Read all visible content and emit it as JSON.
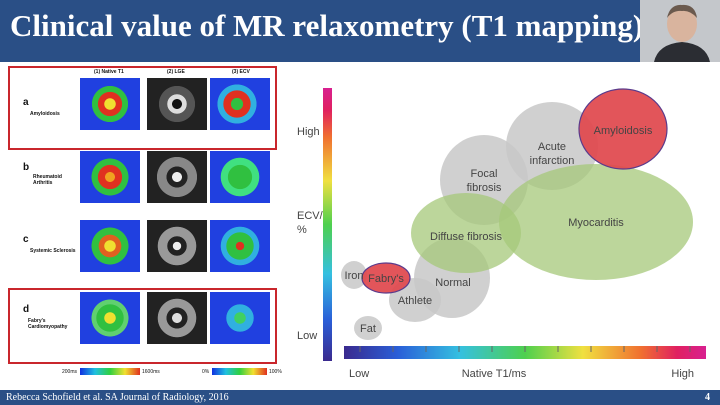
{
  "slide": {
    "title": "Clinical value of MR relaxometry (T1 mapping)",
    "footer_citation": "Rebecca Schofield et al. SA Journal of Radiology, 2016",
    "page_number": "4"
  },
  "figure": {
    "columns": [
      "(1) Native T1",
      "(2) LGE",
      "(3) ECV"
    ],
    "rows": [
      {
        "letter": "a",
        "disease": "Amyloidosis",
        "highlighted": true
      },
      {
        "letter": "b",
        "disease": "Rheumatoid Arthritis",
        "highlighted": false
      },
      {
        "letter": "c",
        "disease": "Systemic Sclerosis",
        "highlighted": false
      },
      {
        "letter": "d",
        "disease": "Fabry's Cardiomyopathy",
        "highlighted": true
      }
    ],
    "t1_scale": {
      "min": "200ms",
      "max": "1600ms"
    },
    "ecv_scale": {
      "min": "0%",
      "max": "100%"
    }
  },
  "diagram": {
    "y_axis_high": "High",
    "y_axis_label_line1": "ECV/",
    "y_axis_label_line2": "%",
    "y_axis_low": "Low",
    "x_axis_low": "Low",
    "x_axis_label": "Native T1/ms",
    "x_axis_high": "High",
    "regions": {
      "iron": "Iron",
      "fabrys": "Fabry's",
      "normal": "Normal",
      "athlete": "Athlete",
      "fat": "Fat",
      "diffuse_fibrosis": "Diffuse fibrosis",
      "focal_fibrosis_1": "Focal",
      "focal_fibrosis_2": "fibrosis",
      "acute_infarction_1": "Acute",
      "acute_infarction_2": "infarction",
      "myocarditis": "Myocarditis",
      "amyloidosis": "Amyloidosis"
    },
    "colors": {
      "grey": "#c8c8c8",
      "green": "#a5c87a",
      "red": "#e0474c",
      "purple_outline": "#5b3b8c"
    }
  }
}
